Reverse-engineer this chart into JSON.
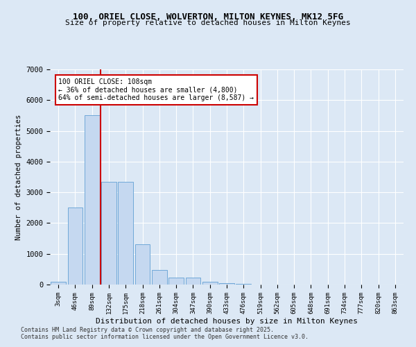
{
  "title_line1": "100, ORIEL CLOSE, WOLVERTON, MILTON KEYNES, MK12 5FG",
  "title_line2": "Size of property relative to detached houses in Milton Keynes",
  "xlabel": "Distribution of detached houses by size in Milton Keynes",
  "ylabel": "Number of detached properties",
  "categories": [
    "3sqm",
    "46sqm",
    "89sqm",
    "132sqm",
    "175sqm",
    "218sqm",
    "261sqm",
    "304sqm",
    "347sqm",
    "390sqm",
    "433sqm",
    "476sqm",
    "519sqm",
    "562sqm",
    "605sqm",
    "648sqm",
    "691sqm",
    "734sqm",
    "777sqm",
    "820sqm",
    "863sqm"
  ],
  "values": [
    100,
    2500,
    5500,
    3350,
    3350,
    1300,
    480,
    220,
    220,
    100,
    55,
    30,
    0,
    0,
    0,
    0,
    0,
    0,
    0,
    0,
    0
  ],
  "bar_color": "#c5d8f0",
  "bar_edge_color": "#6fa8d8",
  "vline_x": 2.5,
  "vline_color": "#cc0000",
  "annotation_text": "100 ORIEL CLOSE: 108sqm\n← 36% of detached houses are smaller (4,800)\n64% of semi-detached houses are larger (8,587) →",
  "annotation_box_facecolor": "#ffffff",
  "annotation_box_edgecolor": "#cc0000",
  "background_color": "#dce8f5",
  "grid_color": "#ffffff",
  "ylim": [
    0,
    7000
  ],
  "yticks": [
    0,
    1000,
    2000,
    3000,
    4000,
    5000,
    6000,
    7000
  ],
  "footer_line1": "Contains HM Land Registry data © Crown copyright and database right 2025.",
  "footer_line2": "Contains public sector information licensed under the Open Government Licence v3.0."
}
